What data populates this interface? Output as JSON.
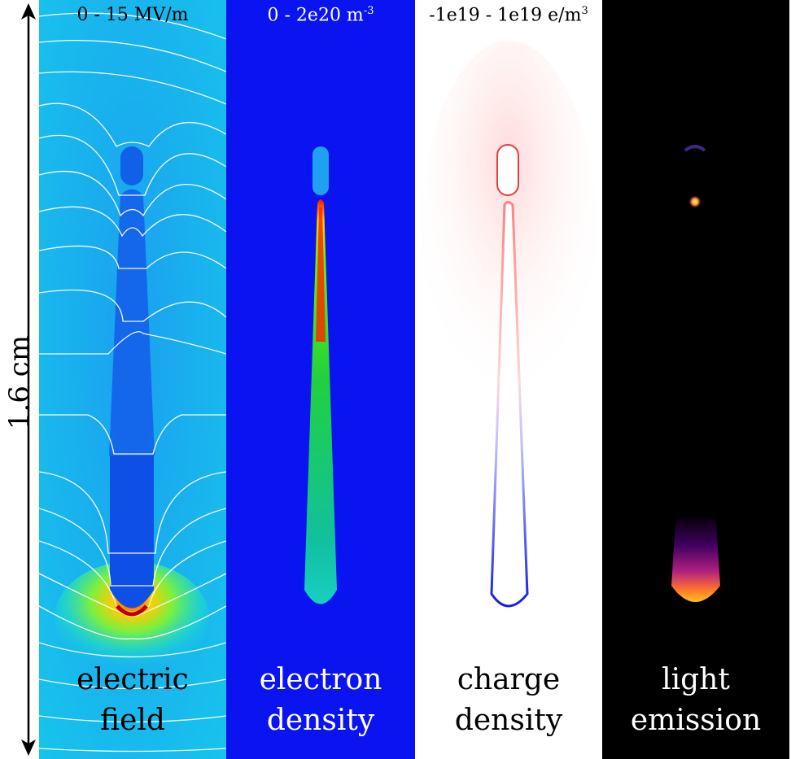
{
  "scale_bar": {
    "label": "1.6 cm"
  },
  "panels": [
    {
      "range": "0 - 15 MV/m",
      "range_sup": "",
      "caption": [
        "electric",
        "field"
      ],
      "colors": {
        "background": "#16b4ec",
        "caption": "#000000",
        "range": "#000000"
      }
    },
    {
      "range": "0 - 2e20 m",
      "range_sup": "-3",
      "caption": [
        "electron",
        "density"
      ],
      "colors": {
        "background": "#0a14f0",
        "caption": "#ffffff",
        "range": "#ffffff"
      }
    },
    {
      "range": "-1e19 - 1e19 e/m",
      "range_sup": "3",
      "caption": [
        "charge",
        "density"
      ],
      "colors": {
        "background": "#ffffff",
        "caption": "#000000",
        "range": "#000000"
      }
    },
    {
      "range": "",
      "range_sup": "",
      "caption": [
        "light",
        "emission"
      ],
      "colors": {
        "background": "#000000",
        "caption": "#ffffff",
        "range": "#ffffff"
      }
    }
  ]
}
